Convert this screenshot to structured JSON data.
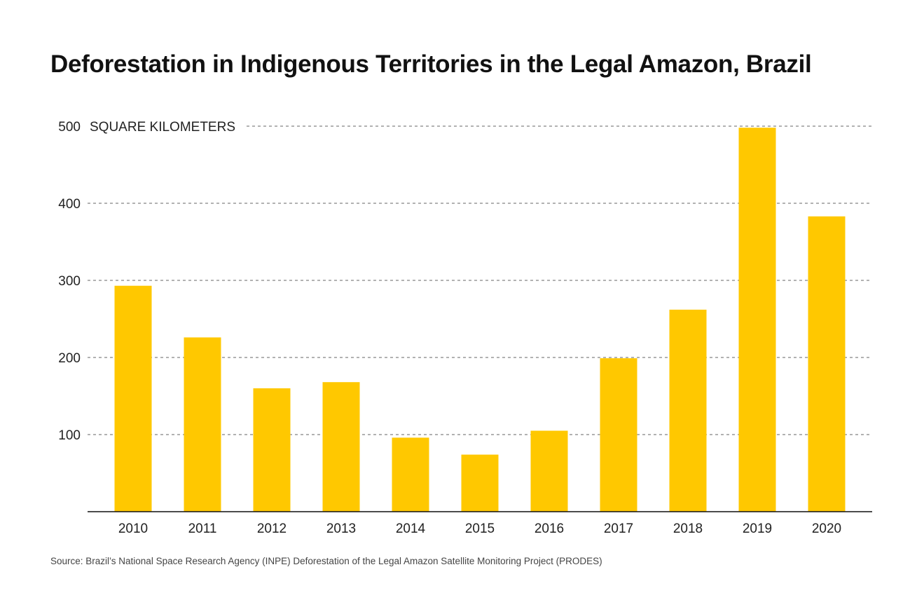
{
  "chart_data": {
    "type": "bar",
    "title": "Deforestation in Indigenous Territories in the Legal Amazon, Brazil",
    "ylabel": "SQUARE KILOMETERS",
    "xlabel": "",
    "categories": [
      "2010",
      "2011",
      "2012",
      "2013",
      "2014",
      "2015",
      "2016",
      "2017",
      "2018",
      "2019",
      "2020"
    ],
    "values": [
      293,
      226,
      160,
      168,
      96,
      74,
      105,
      199,
      262,
      498,
      383
    ],
    "ylim": [
      0,
      500
    ],
    "yticks": [
      100,
      200,
      300,
      400,
      500
    ],
    "grid": "horizontal dashed",
    "bar_color": "#FFC800",
    "source": "Source: Brazil’s National Space Research Agency (INPE) Deforestation of the Legal Amazon Satellite Monitoring Project (PRODES)"
  }
}
